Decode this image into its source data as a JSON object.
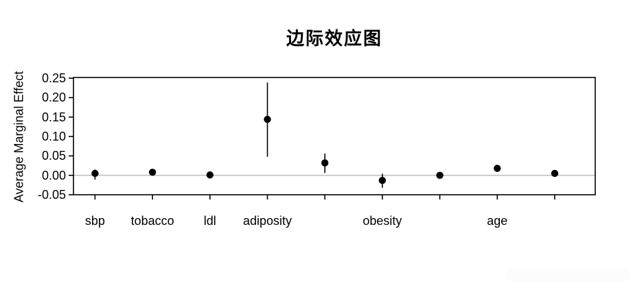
{
  "title": "边际效应图",
  "y_axis": {
    "label": "Average Marginal Effect",
    "tick_labels": [
      "0.25",
      "0.20",
      "0.15",
      "0.10",
      "0.05",
      "0.00",
      "-0.05"
    ]
  },
  "x_axis": {
    "tick_labels": [
      "sbp",
      "tobacco",
      "ldl",
      "adiposity",
      "",
      "obesity",
      "",
      "age",
      ""
    ]
  },
  "chart_data": {
    "type": "scatter",
    "title": "边际效应图",
    "ylabel": "Average Marginal Effect",
    "xlabel": "",
    "ylim": [
      -0.05,
      0.25
    ],
    "y_ticks": [
      0.25,
      0.2,
      0.15,
      0.1,
      0.05,
      0.0,
      -0.05
    ],
    "zero_reference_line": 0,
    "grid": false,
    "legend": "none",
    "marker": "filled-circle-with-ci-bar",
    "categories": [
      "sbp",
      "tobacco",
      "ldl",
      "adiposity",
      "",
      "obesity",
      "",
      "age",
      ""
    ],
    "series": [
      {
        "name": "average_marginal_effect",
        "points": [
          {
            "category": "sbp",
            "value": 0.005,
            "ci_low": -0.011,
            "ci_high": 0.015
          },
          {
            "category": "tobacco",
            "value": 0.008,
            "ci_low": 0.002,
            "ci_high": 0.013
          },
          {
            "category": "ldl",
            "value": 0.001,
            "ci_low": -0.004,
            "ci_high": 0.006
          },
          {
            "category": "adiposity",
            "value": 0.144,
            "ci_low": 0.048,
            "ci_high": 0.239
          },
          {
            "category": "",
            "value": 0.032,
            "ci_low": 0.006,
            "ci_high": 0.056
          },
          {
            "category": "obesity",
            "value": -0.013,
            "ci_low": -0.032,
            "ci_high": 0.004
          },
          {
            "category": "",
            "value": 0.0,
            "ci_low": -0.005,
            "ci_high": 0.005
          },
          {
            "category": "age",
            "value": 0.018,
            "ci_low": 0.011,
            "ci_high": 0.024
          },
          {
            "category": "",
            "value": 0.005,
            "ci_low": -0.001,
            "ci_high": 0.011
          }
        ]
      }
    ]
  },
  "colors": {
    "background": "#ffffff",
    "point": "#000000",
    "axis": "#000000",
    "text": "#000000",
    "zero_line": "#c0c0c0",
    "corner_box": "#fcfcfc"
  }
}
